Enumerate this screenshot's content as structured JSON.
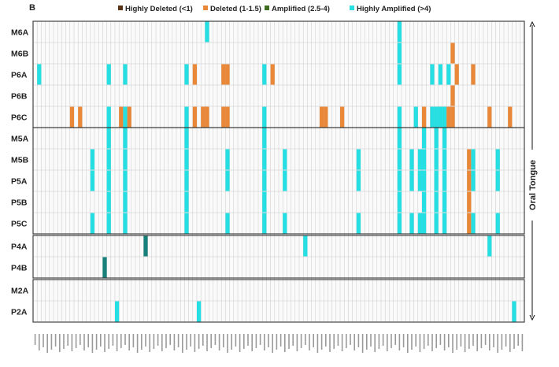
{
  "panel_letter": "B",
  "colors": {
    "highly_deleted": "#5a3414",
    "deleted": "#e98838",
    "amplified": "#3f6e1e",
    "highly_amplified": "#25dfe3",
    "teal_mark": "#17807a",
    "cell_fill": "#fafafa",
    "cell_line": "#c8c8c8",
    "group_line": "#333333"
  },
  "chart_data": {
    "type": "heatmap",
    "legend": [
      {
        "key": "highly_deleted",
        "label": "Highly Deleted (<1)",
        "color": "#5a3414"
      },
      {
        "key": "deleted",
        "label": "Deleted (1-1.5)",
        "color": "#e98838"
      },
      {
        "key": "amplified",
        "label": "Amplified (2.5-4)",
        "color": "#3f6e1e"
      },
      {
        "key": "highly_amplified",
        "label": "Highly Amplified (>4)",
        "color": "#25dfe3"
      }
    ],
    "side_label": "Oral Tongue",
    "n_columns": 120,
    "rows": [
      "M6A",
      "M6B",
      "P6A",
      "P6B",
      "P6C",
      "M5A",
      "M5B",
      "P5A",
      "P5B",
      "P5C",
      "P4A",
      "P4B",
      "M2A",
      "P2A"
    ],
    "groups": [
      {
        "rows": [
          "M6A",
          "M6B",
          "P6A",
          "P6B",
          "P6C"
        ]
      },
      {
        "rows": [
          "M5A",
          "M5B",
          "P5A",
          "P5B",
          "P5C"
        ]
      },
      {
        "rows": [
          "P4A",
          "P4B"
        ]
      },
      {
        "rows": [
          "M2A",
          "P2A"
        ]
      }
    ],
    "marks": [
      {
        "row": "M6A",
        "col": 42,
        "state": "highly_amplified"
      },
      {
        "row": "M6A",
        "col": 89,
        "state": "highly_amplified"
      },
      {
        "row": "M6B",
        "col": 89,
        "state": "highly_amplified"
      },
      {
        "row": "M6B",
        "col": 102,
        "state": "deleted"
      },
      {
        "row": "P6A",
        "col": 1,
        "state": "highly_amplified"
      },
      {
        "row": "P6A",
        "col": 18,
        "state": "highly_amplified"
      },
      {
        "row": "P6A",
        "col": 22,
        "state": "highly_amplified"
      },
      {
        "row": "P6A",
        "col": 37,
        "state": "highly_amplified"
      },
      {
        "row": "P6A",
        "col": 39,
        "state": "deleted"
      },
      {
        "row": "P6A",
        "col": 46,
        "state": "deleted"
      },
      {
        "row": "P6A",
        "col": 47,
        "state": "deleted"
      },
      {
        "row": "P6A",
        "col": 56,
        "state": "highly_amplified"
      },
      {
        "row": "P6A",
        "col": 58,
        "state": "deleted"
      },
      {
        "row": "P6A",
        "col": 89,
        "state": "highly_amplified"
      },
      {
        "row": "P6A",
        "col": 97,
        "state": "highly_amplified"
      },
      {
        "row": "P6A",
        "col": 99,
        "state": "highly_amplified"
      },
      {
        "row": "P6A",
        "col": 101,
        "state": "highly_amplified"
      },
      {
        "row": "P6A",
        "col": 103,
        "state": "deleted"
      },
      {
        "row": "P6A",
        "col": 107,
        "state": "deleted"
      },
      {
        "row": "P6B",
        "col": 102,
        "state": "deleted"
      },
      {
        "row": "P6C",
        "col": 9,
        "state": "deleted"
      },
      {
        "row": "P6C",
        "col": 11,
        "state": "deleted"
      },
      {
        "row": "P6C",
        "col": 18,
        "state": "highly_amplified"
      },
      {
        "row": "P6C",
        "col": 21,
        "state": "deleted"
      },
      {
        "row": "P6C",
        "col": 22,
        "state": "highly_amplified"
      },
      {
        "row": "P6C",
        "col": 23,
        "state": "deleted"
      },
      {
        "row": "P6C",
        "col": 37,
        "state": "highly_amplified"
      },
      {
        "row": "P6C",
        "col": 39,
        "state": "deleted"
      },
      {
        "row": "P6C",
        "col": 41,
        "state": "deleted"
      },
      {
        "row": "P6C",
        "col": 42,
        "state": "deleted"
      },
      {
        "row": "P6C",
        "col": 46,
        "state": "deleted"
      },
      {
        "row": "P6C",
        "col": 47,
        "state": "deleted"
      },
      {
        "row": "P6C",
        "col": 56,
        "state": "highly_amplified"
      },
      {
        "row": "P6C",
        "col": 70,
        "state": "deleted"
      },
      {
        "row": "P6C",
        "col": 71,
        "state": "deleted"
      },
      {
        "row": "P6C",
        "col": 75,
        "state": "deleted"
      },
      {
        "row": "P6C",
        "col": 89,
        "state": "highly_amplified"
      },
      {
        "row": "P6C",
        "col": 93,
        "state": "highly_amplified"
      },
      {
        "row": "P6C",
        "col": 95,
        "state": "deleted"
      },
      {
        "row": "P6C",
        "col": 97,
        "state": "highly_amplified"
      },
      {
        "row": "P6C",
        "col": 98,
        "state": "highly_amplified"
      },
      {
        "row": "P6C",
        "col": 99,
        "state": "highly_amplified"
      },
      {
        "row": "P6C",
        "col": 100,
        "state": "highly_amplified"
      },
      {
        "row": "P6C",
        "col": 101,
        "state": "deleted"
      },
      {
        "row": "P6C",
        "col": 102,
        "state": "deleted"
      },
      {
        "row": "P6C",
        "col": 111,
        "state": "deleted"
      },
      {
        "row": "P6C",
        "col": 116,
        "state": "deleted"
      },
      {
        "row": "M5A",
        "col": 18,
        "state": "highly_amplified"
      },
      {
        "row": "M5A",
        "col": 22,
        "state": "highly_amplified"
      },
      {
        "row": "M5A",
        "col": 37,
        "state": "highly_amplified"
      },
      {
        "row": "M5A",
        "col": 56,
        "state": "highly_amplified"
      },
      {
        "row": "M5A",
        "col": 89,
        "state": "highly_amplified"
      },
      {
        "row": "M5A",
        "col": 95,
        "state": "highly_amplified"
      },
      {
        "row": "M5A",
        "col": 98,
        "state": "highly_amplified"
      },
      {
        "row": "M5A",
        "col": 100,
        "state": "highly_amplified"
      },
      {
        "row": "M5B",
        "col": 14,
        "state": "highly_amplified"
      },
      {
        "row": "M5B",
        "col": 18,
        "state": "highly_amplified"
      },
      {
        "row": "M5B",
        "col": 22,
        "state": "highly_amplified"
      },
      {
        "row": "M5B",
        "col": 37,
        "state": "highly_amplified"
      },
      {
        "row": "M5B",
        "col": 47,
        "state": "highly_amplified"
      },
      {
        "row": "M5B",
        "col": 56,
        "state": "highly_amplified"
      },
      {
        "row": "M5B",
        "col": 61,
        "state": "highly_amplified"
      },
      {
        "row": "M5B",
        "col": 79,
        "state": "highly_amplified"
      },
      {
        "row": "M5B",
        "col": 89,
        "state": "highly_amplified"
      },
      {
        "row": "M5B",
        "col": 92,
        "state": "highly_amplified"
      },
      {
        "row": "M5B",
        "col": 94,
        "state": "highly_amplified"
      },
      {
        "row": "M5B",
        "col": 95,
        "state": "highly_amplified"
      },
      {
        "row": "M5B",
        "col": 98,
        "state": "highly_amplified"
      },
      {
        "row": "M5B",
        "col": 100,
        "state": "highly_amplified"
      },
      {
        "row": "M5B",
        "col": 106,
        "state": "deleted"
      },
      {
        "row": "M5B",
        "col": 107,
        "state": "highly_amplified"
      },
      {
        "row": "M5B",
        "col": 113,
        "state": "highly_amplified"
      },
      {
        "row": "P5A",
        "col": 14,
        "state": "highly_amplified"
      },
      {
        "row": "P5A",
        "col": 18,
        "state": "highly_amplified"
      },
      {
        "row": "P5A",
        "col": 22,
        "state": "highly_amplified"
      },
      {
        "row": "P5A",
        "col": 37,
        "state": "highly_amplified"
      },
      {
        "row": "P5A",
        "col": 47,
        "state": "highly_amplified"
      },
      {
        "row": "P5A",
        "col": 56,
        "state": "highly_amplified"
      },
      {
        "row": "P5A",
        "col": 61,
        "state": "highly_amplified"
      },
      {
        "row": "P5A",
        "col": 79,
        "state": "highly_amplified"
      },
      {
        "row": "P5A",
        "col": 89,
        "state": "highly_amplified"
      },
      {
        "row": "P5A",
        "col": 92,
        "state": "highly_amplified"
      },
      {
        "row": "P5A",
        "col": 94,
        "state": "highly_amplified"
      },
      {
        "row": "P5A",
        "col": 95,
        "state": "highly_amplified"
      },
      {
        "row": "P5A",
        "col": 98,
        "state": "highly_amplified"
      },
      {
        "row": "P5A",
        "col": 100,
        "state": "highly_amplified"
      },
      {
        "row": "P5A",
        "col": 106,
        "state": "deleted"
      },
      {
        "row": "P5A",
        "col": 107,
        "state": "highly_amplified"
      },
      {
        "row": "P5A",
        "col": 113,
        "state": "highly_amplified"
      },
      {
        "row": "P5B",
        "col": 18,
        "state": "highly_amplified"
      },
      {
        "row": "P5B",
        "col": 22,
        "state": "highly_amplified"
      },
      {
        "row": "P5B",
        "col": 37,
        "state": "highly_amplified"
      },
      {
        "row": "P5B",
        "col": 56,
        "state": "highly_amplified"
      },
      {
        "row": "P5B",
        "col": 89,
        "state": "highly_amplified"
      },
      {
        "row": "P5B",
        "col": 95,
        "state": "highly_amplified"
      },
      {
        "row": "P5B",
        "col": 98,
        "state": "highly_amplified"
      },
      {
        "row": "P5B",
        "col": 100,
        "state": "highly_amplified"
      },
      {
        "row": "P5B",
        "col": 106,
        "state": "deleted"
      },
      {
        "row": "P5C",
        "col": 14,
        "state": "highly_amplified"
      },
      {
        "row": "P5C",
        "col": 18,
        "state": "highly_amplified"
      },
      {
        "row": "P5C",
        "col": 22,
        "state": "highly_amplified"
      },
      {
        "row": "P5C",
        "col": 37,
        "state": "highly_amplified"
      },
      {
        "row": "P5C",
        "col": 47,
        "state": "highly_amplified"
      },
      {
        "row": "P5C",
        "col": 56,
        "state": "highly_amplified"
      },
      {
        "row": "P5C",
        "col": 61,
        "state": "highly_amplified"
      },
      {
        "row": "P5C",
        "col": 79,
        "state": "highly_amplified"
      },
      {
        "row": "P5C",
        "col": 89,
        "state": "highly_amplified"
      },
      {
        "row": "P5C",
        "col": 92,
        "state": "highly_amplified"
      },
      {
        "row": "P5C",
        "col": 94,
        "state": "highly_amplified"
      },
      {
        "row": "P5C",
        "col": 95,
        "state": "highly_amplified"
      },
      {
        "row": "P5C",
        "col": 98,
        "state": "highly_amplified"
      },
      {
        "row": "P5C",
        "col": 100,
        "state": "highly_amplified"
      },
      {
        "row": "P5C",
        "col": 106,
        "state": "deleted"
      },
      {
        "row": "P5C",
        "col": 107,
        "state": "highly_amplified"
      },
      {
        "row": "P5C",
        "col": 113,
        "state": "highly_amplified"
      },
      {
        "row": "P4A",
        "col": 27,
        "state": "teal"
      },
      {
        "row": "P4A",
        "col": 66,
        "state": "highly_amplified"
      },
      {
        "row": "P4A",
        "col": 111,
        "state": "highly_amplified"
      },
      {
        "row": "P4B",
        "col": 17,
        "state": "teal"
      },
      {
        "row": "P2A",
        "col": 20,
        "state": "highly_amplified"
      },
      {
        "row": "P2A",
        "col": 40,
        "state": "highly_amplified"
      },
      {
        "row": "P2A",
        "col": 117,
        "state": "highly_amplified"
      }
    ]
  }
}
